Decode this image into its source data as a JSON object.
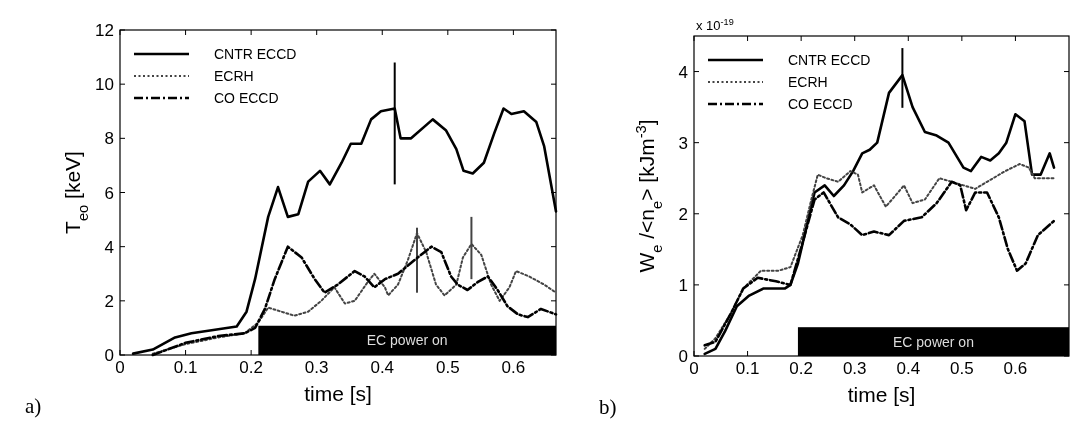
{
  "chart_data": [
    {
      "type": "line",
      "xlabel": "time [s]",
      "ylabel": "T$_{eo}$ [keV]",
      "xlim": [
        0,
        0.665
      ],
      "xticks": [
        0,
        0.1,
        0.2,
        0.3,
        0.4,
        0.5,
        0.6
      ],
      "ylim": [
        0,
        12
      ],
      "yticks": [
        0,
        2,
        4,
        6,
        8,
        10,
        12
      ],
      "grid": false,
      "legend": "top left",
      "annotations": [
        "a)"
      ],
      "bands": [
        {
          "axis": "x",
          "from": 0.211,
          "to": 0.665,
          "label": "EC power on",
          "color": "#000000"
        }
      ],
      "series": [
        {
          "name": "CNTR ECCD",
          "color": "#000000",
          "line_style": "solid",
          "x": [
            0.02,
            0.05,
            0.084,
            0.109,
            0.15,
            0.178,
            0.193,
            0.206,
            0.226,
            0.241,
            0.256,
            0.272,
            0.287,
            0.305,
            0.32,
            0.338,
            0.352,
            0.368,
            0.383,
            0.398,
            0.419,
            0.428,
            0.444,
            0.477,
            0.497,
            0.513,
            0.524,
            0.538,
            0.555,
            0.571,
            0.585,
            0.597,
            0.616,
            0.635,
            0.647,
            0.665
          ],
          "values": [
            0.05,
            0.2,
            0.65,
            0.8,
            0.95,
            1.05,
            1.6,
            2.8,
            5.1,
            6.2,
            5.1,
            5.2,
            6.4,
            6.8,
            6.3,
            7.1,
            7.8,
            7.8,
            8.7,
            9.0,
            9.1,
            8.0,
            8.0,
            8.7,
            8.3,
            7.6,
            6.8,
            6.7,
            7.1,
            8.2,
            9.1,
            8.9,
            9.0,
            8.6,
            7.7,
            5.3
          ],
          "errors": [
            null,
            null,
            null,
            null,
            null,
            null,
            null,
            null,
            null,
            null,
            null,
            null,
            null,
            null,
            null,
            null,
            null,
            null,
            null,
            null,
            [
              6.3,
              10.8
            ],
            null,
            null,
            null,
            null,
            null,
            null,
            null,
            null,
            null,
            null,
            null,
            null,
            null,
            null,
            null
          ]
        },
        {
          "name": "ECRH",
          "color": "#444444",
          "line_style": "dotted",
          "x": [
            0.05,
            0.1,
            0.15,
            0.19,
            0.211,
            0.226,
            0.246,
            0.266,
            0.287,
            0.307,
            0.327,
            0.343,
            0.358,
            0.378,
            0.388,
            0.404,
            0.409,
            0.424,
            0.439,
            0.453,
            0.467,
            0.482,
            0.495,
            0.513,
            0.523,
            0.536,
            0.551,
            0.566,
            0.579,
            0.594,
            0.604,
            0.624,
            0.647,
            0.665
          ],
          "values": [
            0.05,
            0.4,
            0.65,
            0.8,
            1.2,
            1.75,
            1.6,
            1.45,
            1.6,
            2.0,
            2.5,
            1.9,
            2.0,
            2.7,
            3.0,
            2.5,
            2.2,
            2.6,
            3.5,
            4.5,
            3.8,
            2.6,
            2.2,
            2.6,
            3.6,
            4.1,
            3.7,
            2.6,
            2.0,
            2.5,
            3.1,
            2.9,
            2.6,
            2.3
          ],
          "errors": [
            null,
            null,
            null,
            null,
            null,
            null,
            null,
            null,
            null,
            null,
            null,
            null,
            null,
            null,
            null,
            null,
            null,
            null,
            null,
            [
              2.3,
              4.7
            ],
            null,
            null,
            null,
            null,
            null,
            [
              2.8,
              5.1
            ],
            null,
            null,
            null,
            null,
            null,
            null,
            null,
            null
          ]
        },
        {
          "name": "CO ECCD",
          "color": "#000000",
          "line_style": "dashed",
          "x": [
            0.05,
            0.1,
            0.15,
            0.19,
            0.206,
            0.221,
            0.236,
            0.256,
            0.277,
            0.297,
            0.312,
            0.332,
            0.358,
            0.373,
            0.388,
            0.404,
            0.424,
            0.454,
            0.475,
            0.49,
            0.505,
            0.515,
            0.53,
            0.546,
            0.561,
            0.576,
            0.591,
            0.607,
            0.622,
            0.642,
            0.665
          ],
          "values": [
            0.0,
            0.45,
            0.7,
            0.8,
            1.0,
            1.7,
            2.8,
            4.0,
            3.6,
            2.8,
            2.3,
            2.6,
            3.1,
            2.9,
            2.5,
            2.8,
            3.0,
            3.6,
            4.0,
            3.8,
            2.9,
            2.6,
            2.4,
            2.7,
            2.9,
            2.4,
            1.8,
            1.5,
            1.4,
            1.7,
            1.5
          ]
        }
      ]
    },
    {
      "type": "line",
      "xlabel": "time [s]",
      "ylabel": "W$_{e}$ /<n$_{e}$> [kJm$^{-3}$]",
      "xlim": [
        0,
        0.7
      ],
      "xticks": [
        0,
        0.1,
        0.2,
        0.3,
        0.4,
        0.5,
        0.6
      ],
      "ylim": [
        0,
        4.5
      ],
      "yticks": [
        0,
        1,
        2,
        3,
        4
      ],
      "grid": false,
      "legend": "top left",
      "annotations": [
        "x 10$^{-19}$",
        "b)"
      ],
      "bands": [
        {
          "axis": "x",
          "from": 0.194,
          "to": 0.7,
          "label": "EC power on",
          "color": "#000000"
        }
      ],
      "series": [
        {
          "name": "CNTR ECCD",
          "color": "#000000",
          "line_style": "solid",
          "x": [
            0.02,
            0.04,
            0.058,
            0.08,
            0.103,
            0.13,
            0.17,
            0.18,
            0.194,
            0.225,
            0.244,
            0.261,
            0.28,
            0.297,
            0.314,
            0.328,
            0.342,
            0.364,
            0.389,
            0.408,
            0.431,
            0.453,
            0.475,
            0.503,
            0.517,
            0.536,
            0.553,
            0.569,
            0.583,
            0.6,
            0.617,
            0.631,
            0.647,
            0.664,
            0.672
          ],
          "values": [
            0.03,
            0.1,
            0.35,
            0.7,
            0.85,
            0.95,
            0.95,
            1.0,
            1.3,
            2.3,
            2.4,
            2.25,
            2.4,
            2.6,
            2.85,
            2.9,
            3.0,
            3.7,
            3.95,
            3.5,
            3.15,
            3.1,
            3.0,
            2.65,
            2.6,
            2.8,
            2.75,
            2.85,
            3.0,
            3.4,
            3.3,
            2.55,
            2.55,
            2.85,
            2.65
          ],
          "errors": [
            null,
            null,
            null,
            null,
            null,
            null,
            null,
            null,
            null,
            null,
            null,
            null,
            null,
            null,
            null,
            null,
            null,
            null,
            [
              3.49,
              4.33
            ],
            null,
            null,
            null,
            null,
            null,
            null,
            null,
            null,
            null,
            null,
            null,
            null,
            null,
            null,
            null,
            null
          ]
        },
        {
          "name": "ECRH",
          "color": "#444444",
          "line_style": "dotted",
          "x": [
            0.02,
            0.04,
            0.069,
            0.092,
            0.125,
            0.158,
            0.18,
            0.203,
            0.219,
            0.231,
            0.247,
            0.269,
            0.292,
            0.306,
            0.314,
            0.336,
            0.358,
            0.381,
            0.392,
            0.408,
            0.431,
            0.458,
            0.481,
            0.503,
            0.525,
            0.547,
            0.581,
            0.608,
            0.625,
            0.636,
            0.672
          ],
          "values": [
            0.1,
            0.25,
            0.6,
            0.95,
            1.2,
            1.2,
            1.25,
            1.7,
            2.2,
            2.55,
            2.5,
            2.45,
            2.6,
            2.55,
            2.3,
            2.4,
            2.1,
            2.3,
            2.4,
            2.15,
            2.2,
            2.5,
            2.45,
            2.4,
            2.35,
            2.45,
            2.6,
            2.7,
            2.65,
            2.5,
            2.5
          ]
        },
        {
          "name": "CO ECCD",
          "color": "#000000",
          "line_style": "dashed",
          "x": [
            0.02,
            0.04,
            0.069,
            0.092,
            0.119,
            0.153,
            0.18,
            0.203,
            0.225,
            0.242,
            0.269,
            0.292,
            0.314,
            0.336,
            0.364,
            0.392,
            0.425,
            0.453,
            0.481,
            0.497,
            0.508,
            0.525,
            0.547,
            0.569,
            0.586,
            0.603,
            0.619,
            0.642,
            0.672
          ],
          "values": [
            0.15,
            0.2,
            0.6,
            0.95,
            1.1,
            1.05,
            1.0,
            1.6,
            2.2,
            2.3,
            1.95,
            1.85,
            1.7,
            1.75,
            1.7,
            1.9,
            1.95,
            2.15,
            2.45,
            2.4,
            2.05,
            2.3,
            2.3,
            1.95,
            1.5,
            1.2,
            1.3,
            1.7,
            1.9
          ]
        }
      ]
    }
  ]
}
